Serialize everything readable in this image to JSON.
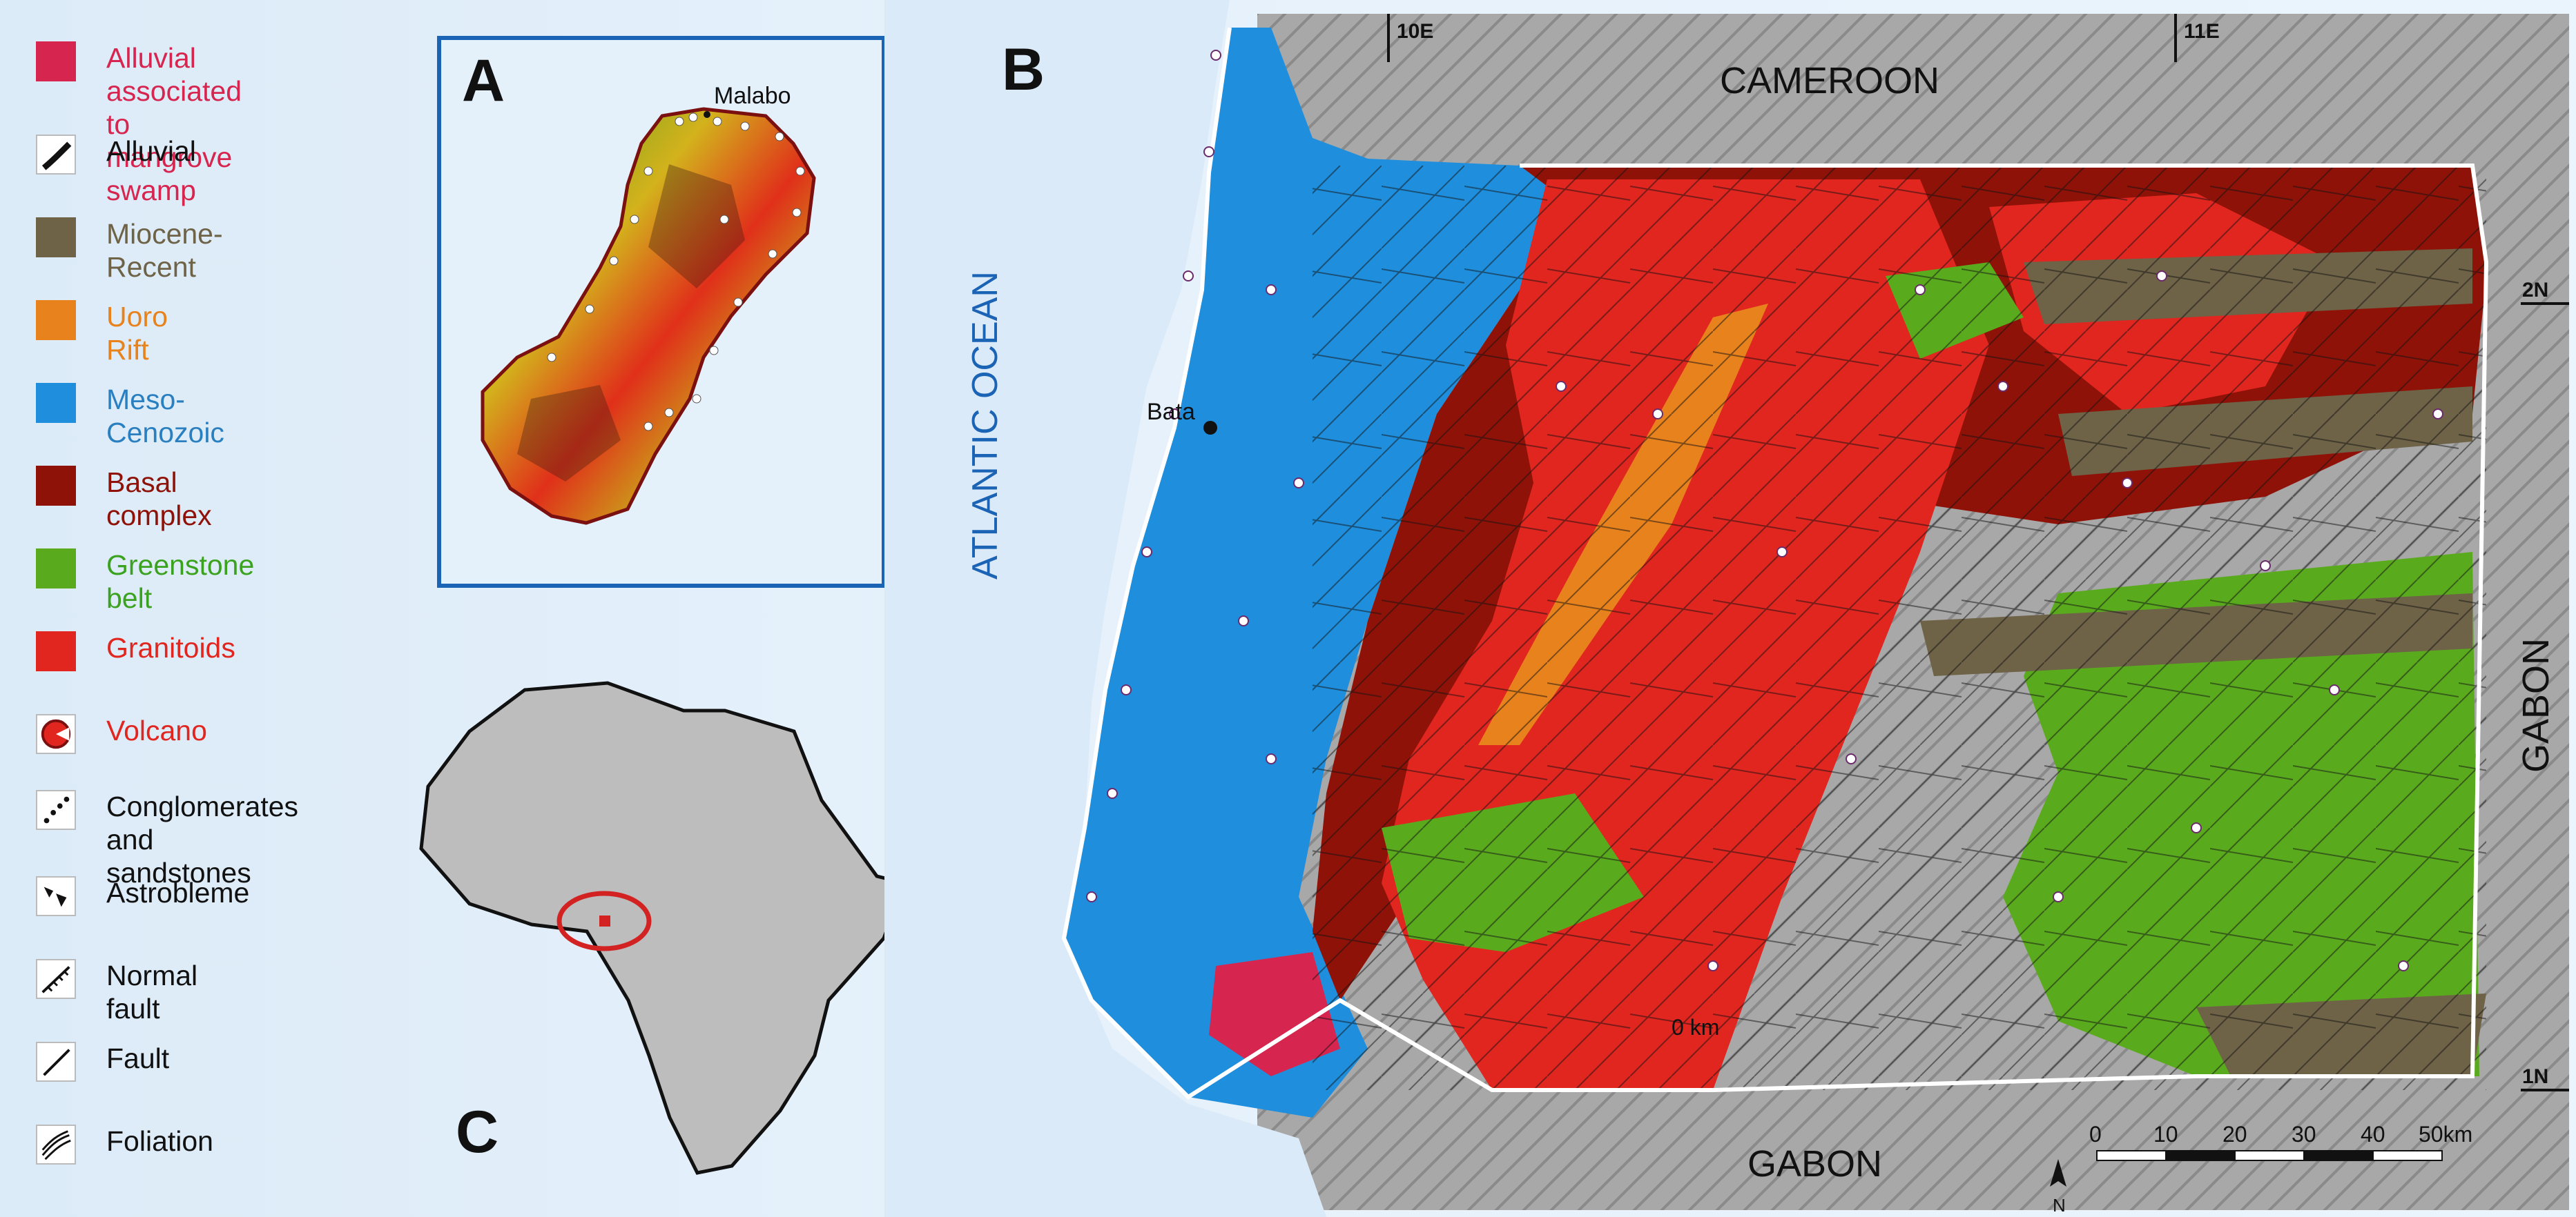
{
  "legend": [
    {
      "label": "Alluvial associated to\nmangrove swamp",
      "color": "#d6254f",
      "icon": "mangrove-swatch",
      "text_color": "#d6254f"
    },
    {
      "label": "Alluvial",
      "color": "#ffffff",
      "icon": "alluvial-symbol",
      "text_color": "#111111"
    },
    {
      "label": "Miocene-Recent",
      "color": "#6e6247",
      "icon": "miocene-swatch",
      "text_color": "#6e6247"
    },
    {
      "label": "Uoro Rift",
      "color": "#e8821c",
      "icon": "uoro-swatch",
      "text_color": "#e8821c"
    },
    {
      "label": "Meso-Cenozoic",
      "color": "#1f8fdd",
      "icon": "meso-swatch",
      "text_color": "#2a7fc0"
    },
    {
      "label": "Basal complex",
      "color": "#8e1208",
      "icon": "basal-swatch",
      "text_color": "#8e1208"
    },
    {
      "label": "Greenstone belt",
      "color": "#5aaa1e",
      "icon": "greenstone-swatch",
      "text_color": "#3aa21e"
    },
    {
      "label": "Granitoids",
      "color": "#e1251f",
      "icon": "granitoids-swatch",
      "text_color": "#e1251f"
    },
    {
      "label": "Volcano",
      "color": "#e1251f",
      "icon": "volcano-symbol",
      "text_color": "#e1251f"
    },
    {
      "label": "Conglomerates\nand sandstones",
      "color": "#ffffff",
      "icon": "conglomerate-symbol",
      "text_color": "#111111"
    },
    {
      "label": "Astrobleme",
      "color": "#ffffff",
      "icon": "astrobleme-symbol",
      "text_color": "#111111"
    },
    {
      "label": "Normal fault",
      "color": "#ffffff",
      "icon": "normal-fault-symbol",
      "text_color": "#111111"
    },
    {
      "label": "Fault",
      "color": "#ffffff",
      "icon": "fault-symbol",
      "text_color": "#111111"
    },
    {
      "label": "Foliation",
      "color": "#ffffff",
      "icon": "foliation-symbol",
      "text_color": "#111111"
    }
  ],
  "panels": {
    "a": "A",
    "b": "B",
    "c": "C"
  },
  "inset_a": {
    "city": "Malabo"
  },
  "map_b": {
    "country_north": "CAMEROON",
    "country_south": "GABON",
    "country_east": "GABON",
    "ocean": "ATLANTIC OCEAN",
    "city": "Bata",
    "lon_ticks": [
      "10E",
      "11E"
    ],
    "lat_ticks": [
      "2N",
      "1N"
    ],
    "scale_labels": [
      "0",
      "10",
      "20",
      "30",
      "40",
      "50km"
    ],
    "north_label": "N",
    "inner_note": "0 km"
  },
  "colors": {
    "ocean": "#dcebf8",
    "relief": "#a6a6a6",
    "meso": "#1f8fdd",
    "basal": "#8e1208",
    "granitoids": "#e1251f",
    "greenstone": "#5aaa1e",
    "miocene": "#6e6247",
    "uoro": "#e8821c",
    "mangrove": "#d6254f",
    "frame_blue": "#1a63b5"
  }
}
